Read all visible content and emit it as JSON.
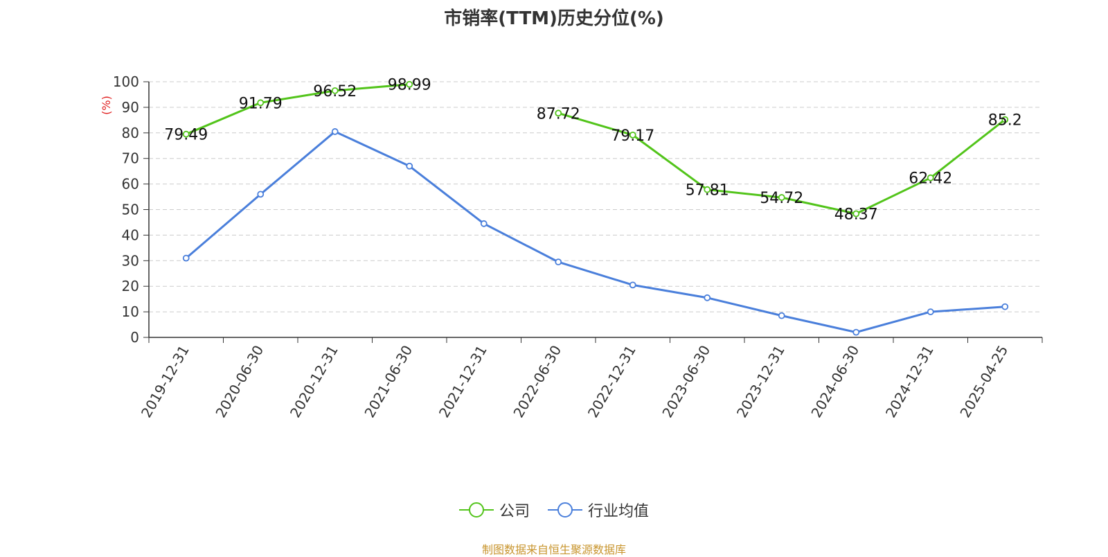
{
  "chart_data": {
    "type": "line",
    "title": "市销率(TTM)历史分位(%)",
    "ylabel": "(%)",
    "ylim": [
      0,
      100
    ],
    "yticks": [
      0,
      10,
      20,
      30,
      40,
      50,
      60,
      70,
      80,
      90,
      100
    ],
    "categories": [
      "2019-12-31",
      "2020-06-30",
      "2020-12-31",
      "2021-06-30",
      "2021-12-31",
      "2022-06-30",
      "2022-12-31",
      "2023-06-30",
      "2023-12-31",
      "2024-06-30",
      "2024-12-31",
      "2025-04-25"
    ],
    "grid": true,
    "legend_position": "bottom-center",
    "series": [
      {
        "name": "公司",
        "color": "#52c41a",
        "values": [
          79.49,
          91.79,
          96.52,
          98.99,
          null,
          87.72,
          79.17,
          57.81,
          54.72,
          48.37,
          62.42,
          85.2
        ],
        "labels": [
          "79.49",
          "91.79",
          "96.52",
          "98.99",
          null,
          "87.72",
          "79.17",
          "57.81",
          "54.72",
          "48.37",
          "62.42",
          "85.2"
        ]
      },
      {
        "name": "行业均值",
        "color": "#4a7fdb",
        "values": [
          31,
          56,
          80.5,
          67,
          44.5,
          29.5,
          20.5,
          15.5,
          8.5,
          2,
          10,
          12
        ]
      }
    ]
  },
  "source": "制图数据来自恒生聚源数据库"
}
